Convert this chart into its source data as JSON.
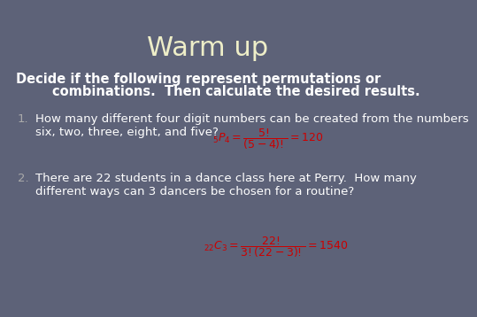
{
  "title": "Warm up",
  "title_color": "#eeeec8",
  "title_fontsize": 22,
  "bg_color": "#5d6278",
  "subtitle_line1": "Decide if the following represent permutations or",
  "subtitle_line2": "        combinations.  Then calculate the desired results.",
  "subtitle_fontsize": 10.5,
  "subtitle_color": "#ffffff",
  "item1_num": "1.",
  "item1_line1": "How many different four digit numbers can be created from the numbers",
  "item1_line2": "six, two, three, eight, and five?",
  "item1_formula": "$_{5}P_{4} = \\dfrac{5!}{(5-4)!} = 120$",
  "item2_num": "2.",
  "item2_line1": "There are 22 students in a dance class here at Perry.  How many",
  "item2_line2": "different ways can 3 dancers be chosen for a routine?",
  "item2_formula": "$_{22}C_{3} = \\dfrac{22!}{3!(22-3)!} = 1540$",
  "body_fontsize": 9.5,
  "body_color": "#ffffff",
  "formula_color": "#cc0000",
  "formula_fontsize": 9.0,
  "num_color": "#aaaaaa"
}
